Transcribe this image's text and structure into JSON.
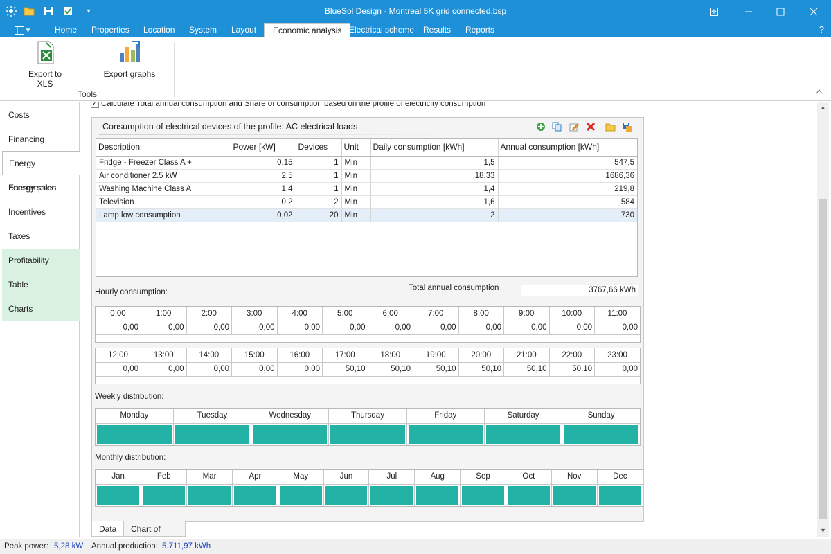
{
  "window": {
    "title": "BlueSol Design - Montreal 5K grid connected.bsp"
  },
  "quick_access": {
    "app_icon": "sun-icon",
    "open": "folder-icon",
    "save": "save-icon",
    "check": "check-icon",
    "more": "▾"
  },
  "ribbon_tabs": [
    "Home",
    "Properties",
    "Location",
    "System",
    "Layout",
    "Economic analysis",
    "Electrical scheme",
    "Results",
    "Reports"
  ],
  "active_tab": "Economic analysis",
  "help": "?",
  "ribbon": {
    "export_xls": "Export to XLS",
    "export_graphs": "Export graphs",
    "group_tools": "Tools"
  },
  "sidenav": [
    "Costs",
    "Financing",
    "Energy consumption",
    "Energy sales",
    "Incentives",
    "Taxes",
    "Profitability",
    "Table",
    "Charts"
  ],
  "active_nav": "Energy consumption",
  "main": {
    "checkbox_label": "Calculate Total annual consumption and Share of consumption based on the profile of electricity consumption",
    "panel_title": "Consumption of electrical devices of the profile: AC electrical loads",
    "columns": [
      "Description",
      "Power [kW]",
      "Devices",
      "Unit",
      "Daily consumption [kWh]",
      "Annual consumption [kWh]"
    ],
    "rows": [
      [
        "Fridge - Freezer Class A +",
        "0,15",
        "1",
        "Min",
        "1,5",
        "547,5"
      ],
      [
        "Air conditioner 2.5 kW",
        "2,5",
        "1",
        "Min",
        "18,33",
        "1686,36"
      ],
      [
        "Washing Machine Class A",
        "1,4",
        "1",
        "Min",
        "1,4",
        "219,8"
      ],
      [
        "Television",
        "0,2",
        "2",
        "Min",
        "1,6",
        "584"
      ],
      [
        "Lamp low consumption",
        "0,02",
        "20",
        "Min",
        "2",
        "730"
      ]
    ],
    "hourly_label": "Hourly consumption:",
    "total_label": "Total annual consumption",
    "total_value": "3767,66 kWh",
    "hours_am": [
      "0:00",
      "1:00",
      "2:00",
      "3:00",
      "4:00",
      "5:00",
      "6:00",
      "7:00",
      "8:00",
      "9:00",
      "10:00",
      "11:00"
    ],
    "values_am": [
      "0,00",
      "0,00",
      "0,00",
      "0,00",
      "0,00",
      "0,00",
      "0,00",
      "0,00",
      "0,00",
      "0,00",
      "0,00",
      "0,00"
    ],
    "hours_pm": [
      "12:00",
      "13:00",
      "14:00",
      "15:00",
      "16:00",
      "17:00",
      "18:00",
      "19:00",
      "20:00",
      "21:00",
      "22:00",
      "23:00"
    ],
    "values_pm": [
      "0,00",
      "0,00",
      "0,00",
      "0,00",
      "0,00",
      "50,10",
      "50,10",
      "50,10",
      "50,10",
      "50,10",
      "50,10",
      "0,00"
    ],
    "weekly_label": "Weekly distribution:",
    "days": [
      "Monday",
      "Tuesday",
      "Wednesday",
      "Thursday",
      "Friday",
      "Saturday",
      "Sunday"
    ],
    "monthly_label": "Monthly distribution:",
    "months": [
      "Jan",
      "Feb",
      "Mar",
      "Apr",
      "May",
      "Jun",
      "Jul",
      "Aug",
      "Sep",
      "Oct",
      "Nov",
      "Dec"
    ],
    "bar_color": "#22b2a6",
    "bottom_tabs": [
      "Data",
      "Chart of monthly consumption"
    ]
  },
  "status": {
    "peak_label": "Peak power:",
    "peak_value": "5,28 kW",
    "annual_label": "Annual production:",
    "annual_value": "5.711,97 kWh"
  }
}
